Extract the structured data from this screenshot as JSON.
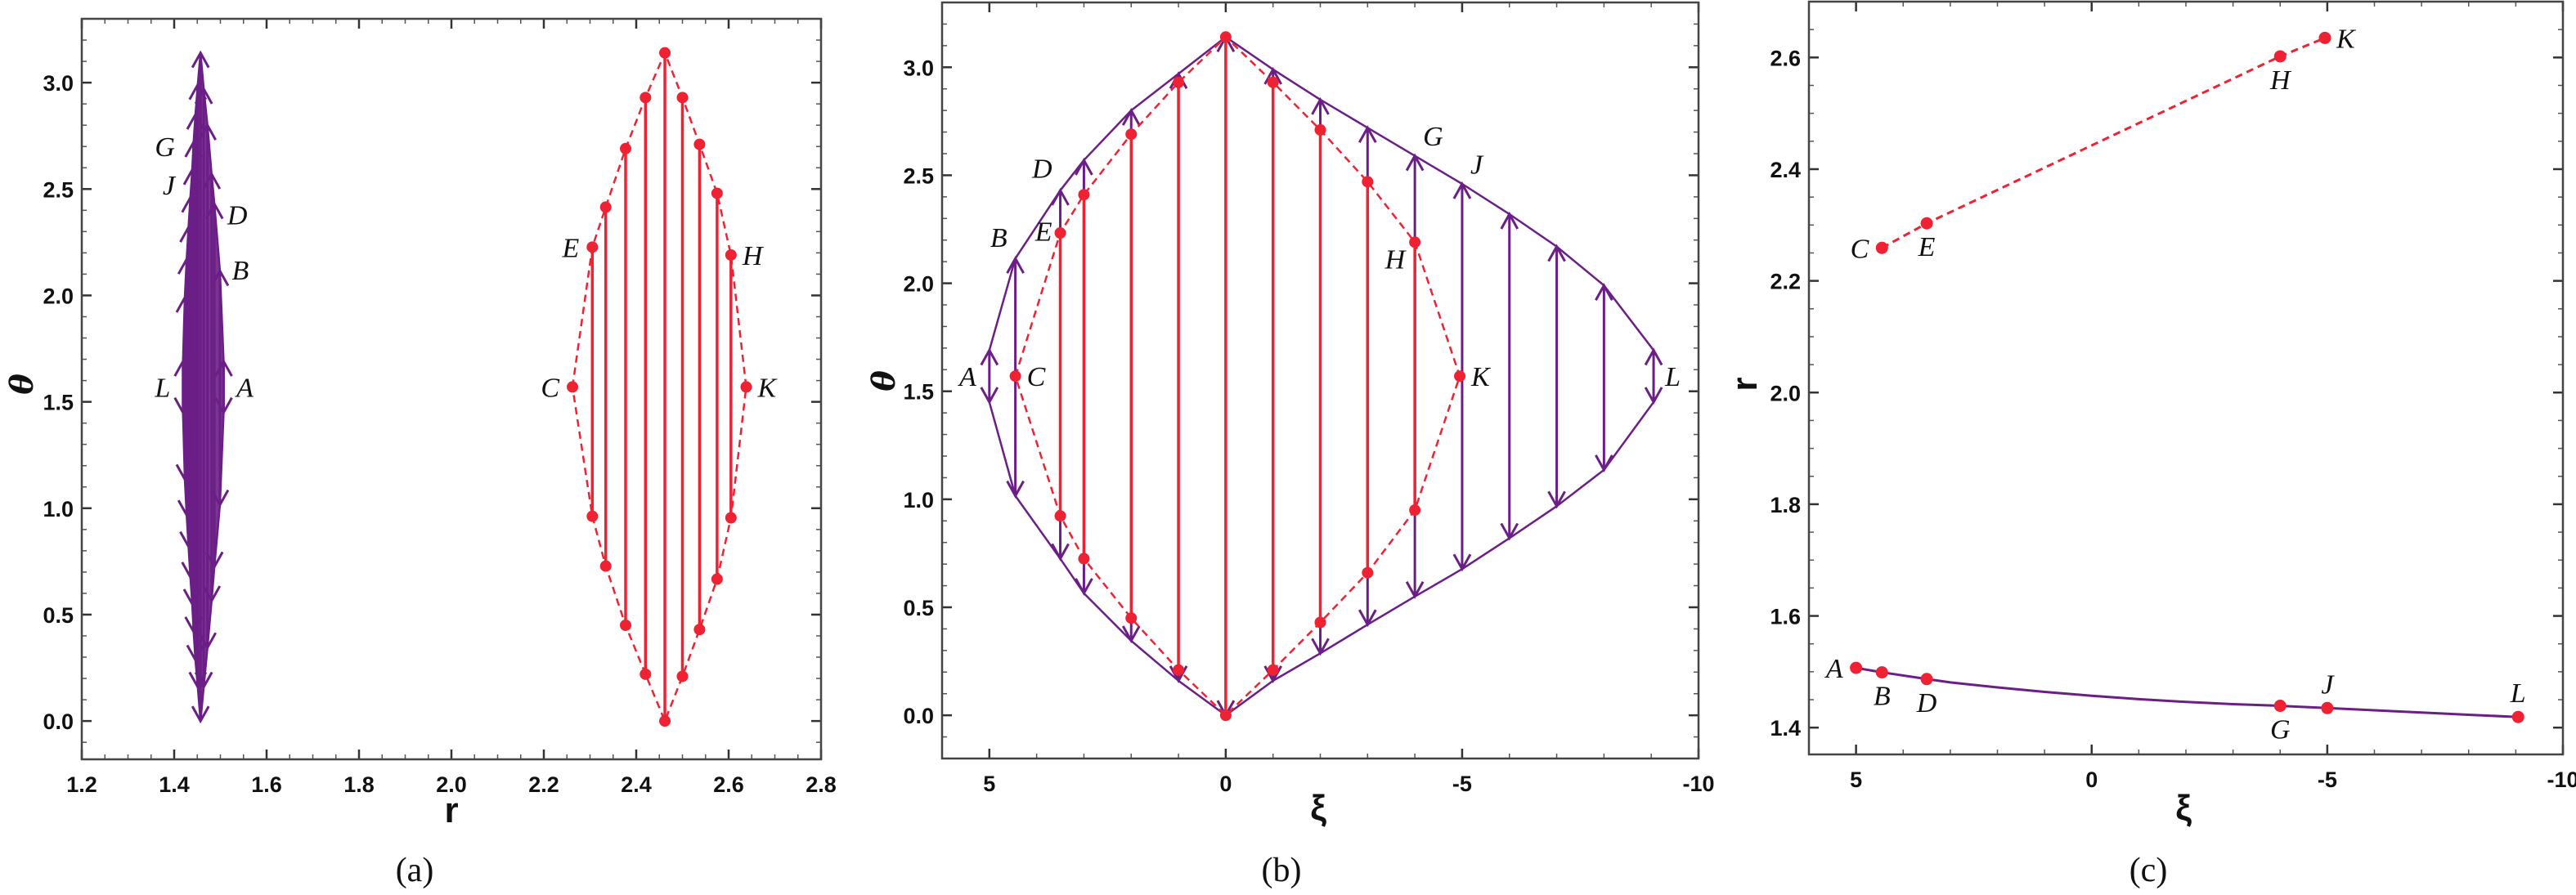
{
  "colors": {
    "purple": "#6b1f86",
    "red": "#ee2233",
    "frame": "#444444"
  },
  "chart_data": [
    {
      "panel": "(a)",
      "type": "line",
      "xlabel": "r",
      "ylabel": "θ",
      "xlim": [
        1.2,
        2.8
      ],
      "ylim": [
        -0.18,
        3.3
      ],
      "xticks": [
        1.2,
        1.4,
        1.6,
        1.8,
        2.0,
        2.2,
        2.4,
        2.6,
        2.8
      ],
      "xtick_labels": [
        "1.2",
        "1.4",
        "1.6",
        "1.8",
        "2.0",
        "2.2",
        "2.4",
        "2.6",
        "2.8"
      ],
      "x_minor_step": 0.05,
      "yticks": [
        0,
        0.5,
        1.0,
        1.5,
        2.0,
        2.5,
        3.0
      ],
      "ytick_labels": [
        "0.0",
        "0.5",
        "1.0",
        "1.5",
        "2.0",
        "2.5",
        "3.0"
      ],
      "y_minor_step": 0.1,
      "grid": false,
      "purple_arrows": {
        "x": [
          1.507,
          1.499,
          1.487,
          1.481,
          1.472,
          1.464,
          1.457,
          1.451,
          1.446,
          1.442,
          1.439,
          1.435,
          1.431,
          1.427,
          1.423,
          1.419
        ],
        "y_top": [
          1.69,
          2.115,
          2.43,
          2.57,
          2.8,
          2.97,
          3.14,
          2.99,
          2.85,
          2.72,
          2.59,
          2.46,
          2.32,
          2.17,
          1.99,
          1.69
        ],
        "y_bottom": [
          1.45,
          1.016,
          0.725,
          0.565,
          0.345,
          0.16,
          0.0,
          0.16,
          0.287,
          0.42,
          0.55,
          0.677,
          0.82,
          0.968,
          1.136,
          1.45
        ]
      },
      "red_segments": {
        "x": [
          2.262,
          2.305,
          2.334,
          2.377,
          2.42,
          2.462,
          2.5,
          2.537,
          2.575,
          2.605,
          2.638
        ],
        "y_top": [
          1.57,
          2.227,
          2.415,
          2.69,
          2.93,
          3.14,
          2.93,
          2.71,
          2.48,
          2.19,
          1.57
        ],
        "y_bottom": [
          1.57,
          0.962,
          0.728,
          0.45,
          0.22,
          0.0,
          0.21,
          0.43,
          0.667,
          0.955,
          1.57
        ]
      },
      "labels": [
        {
          "text": "G",
          "x": 1.43,
          "y": 2.7,
          "pos": "left"
        },
        {
          "text": "J",
          "x": 1.43,
          "y": 2.52,
          "pos": "left"
        },
        {
          "text": "D",
          "x": 1.49,
          "y": 2.38,
          "pos": "right"
        },
        {
          "text": "B",
          "x": 1.5,
          "y": 2.12,
          "pos": "right"
        },
        {
          "text": "L",
          "x": 1.42,
          "y": 1.57,
          "pos": "left"
        },
        {
          "text": "A",
          "x": 1.51,
          "y": 1.57,
          "pos": "right"
        },
        {
          "text": "C",
          "x": 2.262,
          "y": 1.57,
          "pos": "left"
        },
        {
          "text": "E",
          "x": 2.305,
          "y": 2.227,
          "pos": "left"
        },
        {
          "text": "H",
          "x": 2.605,
          "y": 2.19,
          "pos": "right"
        },
        {
          "text": "K",
          "x": 2.638,
          "y": 1.57,
          "pos": "right"
        }
      ]
    },
    {
      "panel": "(b)",
      "type": "line",
      "xlabel": "ξ",
      "ylabel": "θ",
      "xlim": [
        6,
        -10
      ],
      "ylim": [
        -0.2,
        3.3
      ],
      "xticks": [
        5,
        0,
        -5,
        -10
      ],
      "xtick_labels": [
        "5",
        "0",
        "-5",
        "-10"
      ],
      "x_minor_step": 1,
      "yticks": [
        0,
        0.5,
        1.0,
        1.5,
        2.0,
        2.5,
        3.0
      ],
      "ytick_labels": [
        "0.0",
        "0.5",
        "1.0",
        "1.5",
        "2.0",
        "2.5",
        "3.0"
      ],
      "y_minor_step": 0.1,
      "grid": false,
      "purple_arrows": {
        "x": [
          5,
          4.45,
          3.5,
          3,
          2,
          1,
          0,
          -1,
          -2,
          -3,
          -4,
          -5,
          -6,
          -7,
          -8,
          -9.05
        ],
        "y_top": [
          1.69,
          2.115,
          2.43,
          2.57,
          2.8,
          2.97,
          3.14,
          2.99,
          2.85,
          2.72,
          2.59,
          2.46,
          2.32,
          2.17,
          1.99,
          1.69
        ],
        "y_bottom": [
          1.45,
          1.016,
          0.725,
          0.565,
          0.345,
          0.16,
          0.0,
          0.16,
          0.287,
          0.42,
          0.55,
          0.677,
          0.82,
          0.968,
          1.136,
          1.45
        ]
      },
      "red_segments": {
        "x": [
          4.45,
          3.5,
          3,
          2,
          1,
          0,
          -1,
          -2,
          -3,
          -4,
          -4.95
        ],
        "y_top": [
          1.57,
          2.233,
          2.41,
          2.69,
          2.93,
          3.14,
          2.93,
          2.71,
          2.47,
          2.19,
          1.57
        ],
        "y_bottom": [
          1.57,
          0.923,
          0.725,
          0.45,
          0.21,
          0.0,
          0.21,
          0.43,
          0.66,
          0.95,
          1.57
        ]
      },
      "labels": [
        {
          "text": "A",
          "x": 5,
          "y": 1.57,
          "pos": "left"
        },
        {
          "text": "C",
          "x": 4.45,
          "y": 1.57,
          "pos": "right"
        },
        {
          "text": "B",
          "x": 4.45,
          "y": 2.13,
          "pos": "above-left"
        },
        {
          "text": "E",
          "x": 3.5,
          "y": 2.16,
          "pos": "above-left"
        },
        {
          "text": "D",
          "x": 3.5,
          "y": 2.45,
          "pos": "above-left"
        },
        {
          "text": "G",
          "x": -4,
          "y": 2.6,
          "pos": "above-right"
        },
        {
          "text": "J",
          "x": -5,
          "y": 2.47,
          "pos": "above-right"
        },
        {
          "text": "H",
          "x": -4,
          "y": 2.19,
          "pos": "below-left"
        },
        {
          "text": "K",
          "x": -4.95,
          "y": 1.57,
          "pos": "right"
        },
        {
          "text": "L",
          "x": -9.05,
          "y": 1.57,
          "pos": "right"
        }
      ]
    },
    {
      "panel": "(c)",
      "type": "line",
      "xlabel": "ξ",
      "ylabel": "r",
      "xlim": [
        6,
        -10
      ],
      "ylim": [
        1.352,
        2.7
      ],
      "xticks": [
        5,
        0,
        -5,
        -10
      ],
      "xtick_labels": [
        "5",
        "0",
        "-5",
        "-10"
      ],
      "x_minor_step": 1,
      "yticks": [
        1.4,
        1.6,
        1.8,
        2.0,
        2.2,
        2.4,
        2.6
      ],
      "ytick_labels": [
        "1.4",
        "1.6",
        "1.8",
        "2.0",
        "2.2",
        "2.4",
        "2.6"
      ],
      "y_minor_step": 0.05,
      "grid": false,
      "series": [
        {
          "color": "purple",
          "style": "solid",
          "x": [
            5,
            4.45,
            3.5,
            3,
            2,
            1,
            0,
            -1,
            -2,
            -3,
            -4,
            -5,
            -6,
            -7,
            -8,
            -9.05
          ],
          "y": [
            1.507,
            1.499,
            1.487,
            1.481,
            1.472,
            1.464,
            1.457,
            1.451,
            1.446,
            1.442,
            1.439,
            1.435,
            1.431,
            1.427,
            1.423,
            1.419
          ],
          "markers": [
            {
              "label": "A",
              "x": 5,
              "y": 1.507
            },
            {
              "label": "B",
              "x": 4.45,
              "y": 1.499
            },
            {
              "label": "D",
              "x": 3.5,
              "y": 1.487
            },
            {
              "label": "G",
              "x": -4,
              "y": 1.439
            },
            {
              "label": "J",
              "x": -5,
              "y": 1.435
            },
            {
              "label": "L",
              "x": -9.05,
              "y": 1.419
            }
          ]
        },
        {
          "color": "red",
          "style": "dashed",
          "x": [
            4.45,
            3.5,
            -4,
            -4.95
          ],
          "y": [
            2.259,
            2.303,
            2.602,
            2.635
          ],
          "markers": [
            {
              "label": "C",
              "x": 4.45,
              "y": 2.259
            },
            {
              "label": "E",
              "x": 3.5,
              "y": 2.303
            },
            {
              "label": "H",
              "x": -4,
              "y": 2.602
            },
            {
              "label": "K",
              "x": -4.95,
              "y": 2.635
            }
          ]
        }
      ],
      "labels": [
        {
          "text": "A",
          "x": 5,
          "y": 1.507,
          "pos": "left"
        },
        {
          "text": "B",
          "x": 4.45,
          "y": 1.499,
          "pos": "below"
        },
        {
          "text": "D",
          "x": 3.5,
          "y": 1.487,
          "pos": "below"
        },
        {
          "text": "G",
          "x": -4,
          "y": 1.439,
          "pos": "below"
        },
        {
          "text": "J",
          "x": -5,
          "y": 1.435,
          "pos": "above"
        },
        {
          "text": "L",
          "x": -9.05,
          "y": 1.419,
          "pos": "above"
        },
        {
          "text": "C",
          "x": 4.45,
          "y": 2.259,
          "pos": "left"
        },
        {
          "text": "E",
          "x": 3.5,
          "y": 2.303,
          "pos": "below"
        },
        {
          "text": "H",
          "x": -4,
          "y": 2.602,
          "pos": "below"
        },
        {
          "text": "K",
          "x": -4.95,
          "y": 2.635,
          "pos": "right"
        }
      ]
    }
  ]
}
